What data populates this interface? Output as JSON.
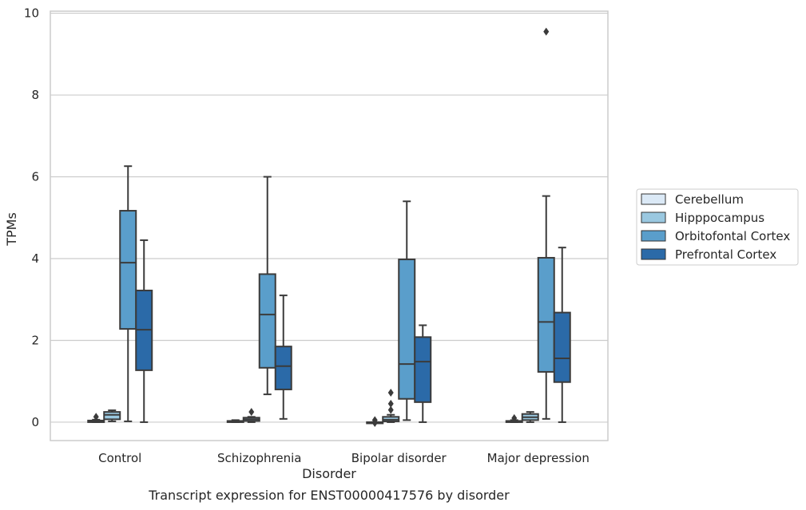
{
  "chart_data": {
    "type": "box",
    "caption": "Transcript expression for ENST00000417576 by disorder",
    "xlabel": "Disorder",
    "ylabel": "TPMs",
    "ylim": [
      -0.45,
      10.05
    ],
    "yticks": [
      0,
      2,
      4,
      6,
      8,
      10
    ],
    "grid": "y",
    "legend_position": "right",
    "categories": [
      "Control",
      "Schizophrenia",
      "Bipolar disorder",
      "Major depression"
    ],
    "series": [
      {
        "name": "Cerebellum",
        "color": "#dbe9f6",
        "boxes": [
          {
            "whislo": 0.0,
            "q1": 0.0,
            "med": 0.02,
            "q3": 0.04,
            "whishi": 0.06,
            "fliers": [
              0.13
            ]
          },
          {
            "whislo": 0.0,
            "q1": 0.0,
            "med": 0.01,
            "q3": 0.03,
            "whishi": 0.05,
            "fliers": []
          },
          {
            "whislo": 0.0,
            "q1": 0.0,
            "med": 0.0,
            "q3": 0.0,
            "whishi": 0.0,
            "fliers": [
              0.05,
              -0.02
            ]
          },
          {
            "whislo": 0.0,
            "q1": 0.0,
            "med": 0.01,
            "q3": 0.03,
            "whishi": 0.05,
            "fliers": [
              0.1
            ]
          }
        ]
      },
      {
        "name": "Hipppocampus",
        "color": "#9ac8e0",
        "boxes": [
          {
            "whislo": 0.02,
            "q1": 0.07,
            "med": 0.18,
            "q3": 0.25,
            "whishi": 0.29,
            "fliers": []
          },
          {
            "whislo": 0.0,
            "q1": 0.03,
            "med": 0.07,
            "q3": 0.11,
            "whishi": 0.13,
            "fliers": [
              0.25
            ]
          },
          {
            "whislo": 0.0,
            "q1": 0.02,
            "med": 0.06,
            "q3": 0.13,
            "whishi": 0.18,
            "fliers": [
              0.3,
              0.45,
              0.72
            ]
          },
          {
            "whislo": 0.0,
            "q1": 0.05,
            "med": 0.12,
            "q3": 0.2,
            "whishi": 0.25,
            "fliers": []
          }
        ]
      },
      {
        "name": "Orbitofontal Cortex",
        "color": "#5a9ecb",
        "boxes": [
          {
            "whislo": 0.02,
            "q1": 2.28,
            "med": 3.9,
            "q3": 5.17,
            "whishi": 6.26,
            "fliers": []
          },
          {
            "whislo": 0.68,
            "q1": 1.33,
            "med": 2.63,
            "q3": 3.62,
            "whishi": 6.0,
            "fliers": []
          },
          {
            "whislo": 0.05,
            "q1": 0.57,
            "med": 1.42,
            "q3": 3.98,
            "whishi": 5.4,
            "fliers": []
          },
          {
            "whislo": 0.08,
            "q1": 1.23,
            "med": 2.45,
            "q3": 4.02,
            "whishi": 5.53,
            "fliers": [
              9.55
            ]
          }
        ]
      },
      {
        "name": "Prefrontal Cortex",
        "color": "#2b6aa8",
        "boxes": [
          {
            "whislo": 0.0,
            "q1": 1.27,
            "med": 2.26,
            "q3": 3.22,
            "whishi": 4.45,
            "fliers": []
          },
          {
            "whislo": 0.08,
            "q1": 0.8,
            "med": 1.37,
            "q3": 1.85,
            "whishi": 3.1,
            "fliers": []
          },
          {
            "whislo": 0.0,
            "q1": 0.49,
            "med": 1.48,
            "q3": 2.08,
            "whishi": 2.37,
            "fliers": []
          },
          {
            "whislo": 0.0,
            "q1": 0.98,
            "med": 1.56,
            "q3": 2.68,
            "whishi": 4.27,
            "fliers": []
          }
        ]
      }
    ]
  }
}
